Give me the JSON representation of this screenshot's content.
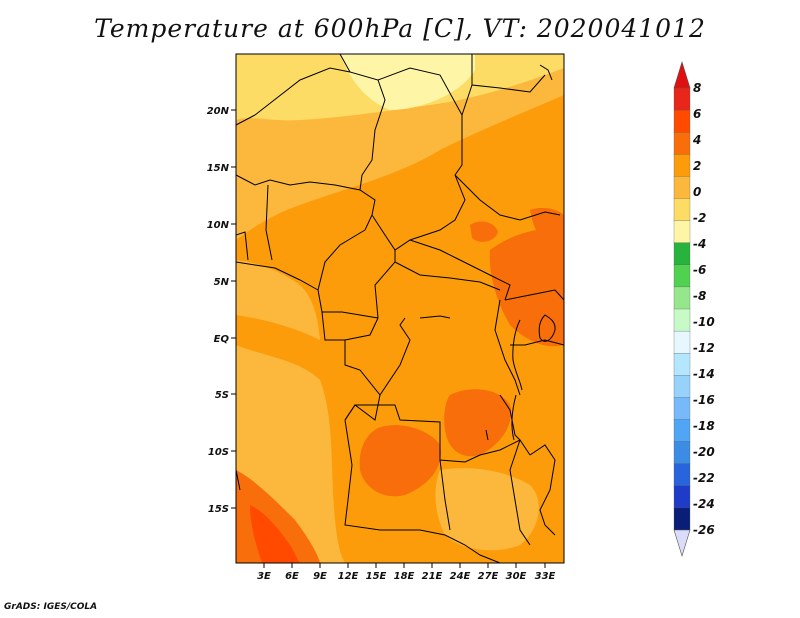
{
  "title": "Temperature at 600hPa [C], VT: 2020041012",
  "credit": "GrADS: IGES/COLA",
  "map": {
    "lat_labels": [
      "20N",
      "15N",
      "10N",
      "5N",
      "EQ",
      "5S",
      "10S",
      "15S"
    ],
    "lon_labels": [
      "3E",
      "6E",
      "9E",
      "12E",
      "15E",
      "18E",
      "21E",
      "24E",
      "27E",
      "30E",
      "33E"
    ]
  },
  "colorbar": {
    "labels": [
      "8",
      "6",
      "4",
      "2",
      "0",
      "-2",
      "-4",
      "-6",
      "-8",
      "-10",
      "-12",
      "-14",
      "-16",
      "-18",
      "-20",
      "-22",
      "-24",
      "-26"
    ],
    "colors": [
      "#e8261a",
      "#ff4a00",
      "#f86e0a",
      "#fc9c0a",
      "#fcb83c",
      "#fcdc64",
      "#fef6a6",
      "#28b43c",
      "#50d250",
      "#96e68c",
      "#c8fac8",
      "#e6f7ff",
      "#b4e6ff",
      "#96d2fa",
      "#78b9fa",
      "#50a5f5",
      "#3c8ce6",
      "#2864dc",
      "#1e3cc8",
      "#0a1e78"
    ],
    "top_arrow": "#e01010",
    "bottom_arrow": "#dcdcfa"
  }
}
